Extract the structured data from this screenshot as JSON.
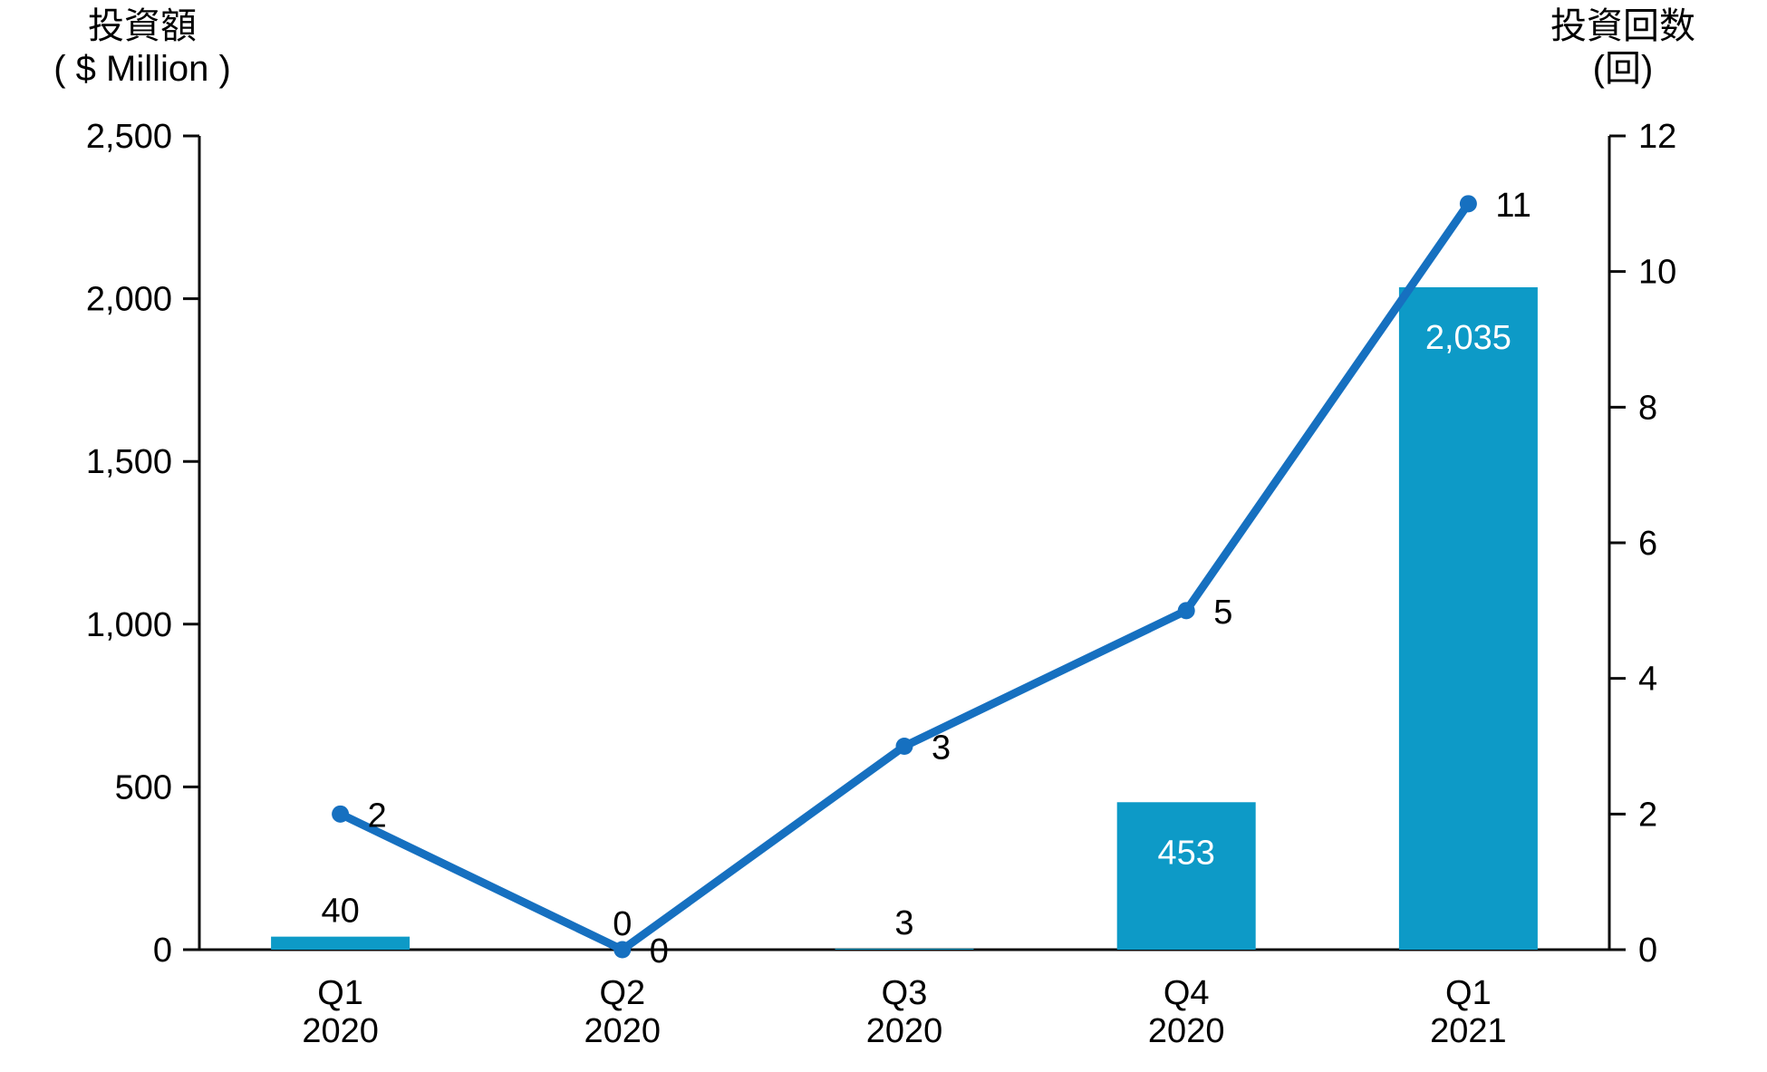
{
  "left_axis": {
    "title_line1": "投資額",
    "title_line2": "( $ Million )",
    "min": 0,
    "max": 2500,
    "tick_step": 500,
    "tick_labels": [
      "0",
      "500",
      "1,000",
      "1,500",
      "2,000",
      "2,500"
    ]
  },
  "right_axis": {
    "title_line1": "投資回数",
    "title_line2": "(回)",
    "min": 0,
    "max": 12,
    "tick_step": 2,
    "tick_labels": [
      "0",
      "2",
      "4",
      "6",
      "8",
      "10",
      "12"
    ]
  },
  "chart_data": {
    "type": "combo-bar-line",
    "title": "",
    "legend": "none",
    "grid": false,
    "categories": [
      {
        "line1": "Q1",
        "line2": "2020"
      },
      {
        "line1": "Q2",
        "line2": "2020"
      },
      {
        "line1": "Q3",
        "line2": "2020"
      },
      {
        "line1": "Q4",
        "line2": "2020"
      },
      {
        "line1": "Q1",
        "line2": "2021"
      }
    ],
    "ylim_left": [
      0,
      2500
    ],
    "ylim_right": [
      0,
      12
    ],
    "series": [
      {
        "name": "投資額 ($ Million)",
        "type": "bar",
        "axis": "left",
        "color": "#0D9AC7",
        "values": [
          40,
          0,
          3,
          453,
          2035
        ],
        "data_labels": [
          "40",
          "0",
          "3",
          "453",
          "2,035"
        ],
        "label_inside": [
          false,
          false,
          false,
          true,
          true
        ],
        "inside_label_color": "#FFFFFF",
        "outside_label_color": "#000000"
      },
      {
        "name": "投資回数 (回)",
        "type": "line",
        "axis": "right",
        "color": "#1670C0",
        "values": [
          2,
          0,
          3,
          5,
          11
        ],
        "data_labels": [
          "2",
          "0",
          "3",
          "5",
          "11"
        ]
      }
    ]
  },
  "colors": {
    "axis": "#0A0A0A",
    "text": "#000000",
    "background": "#FFFFFF"
  }
}
